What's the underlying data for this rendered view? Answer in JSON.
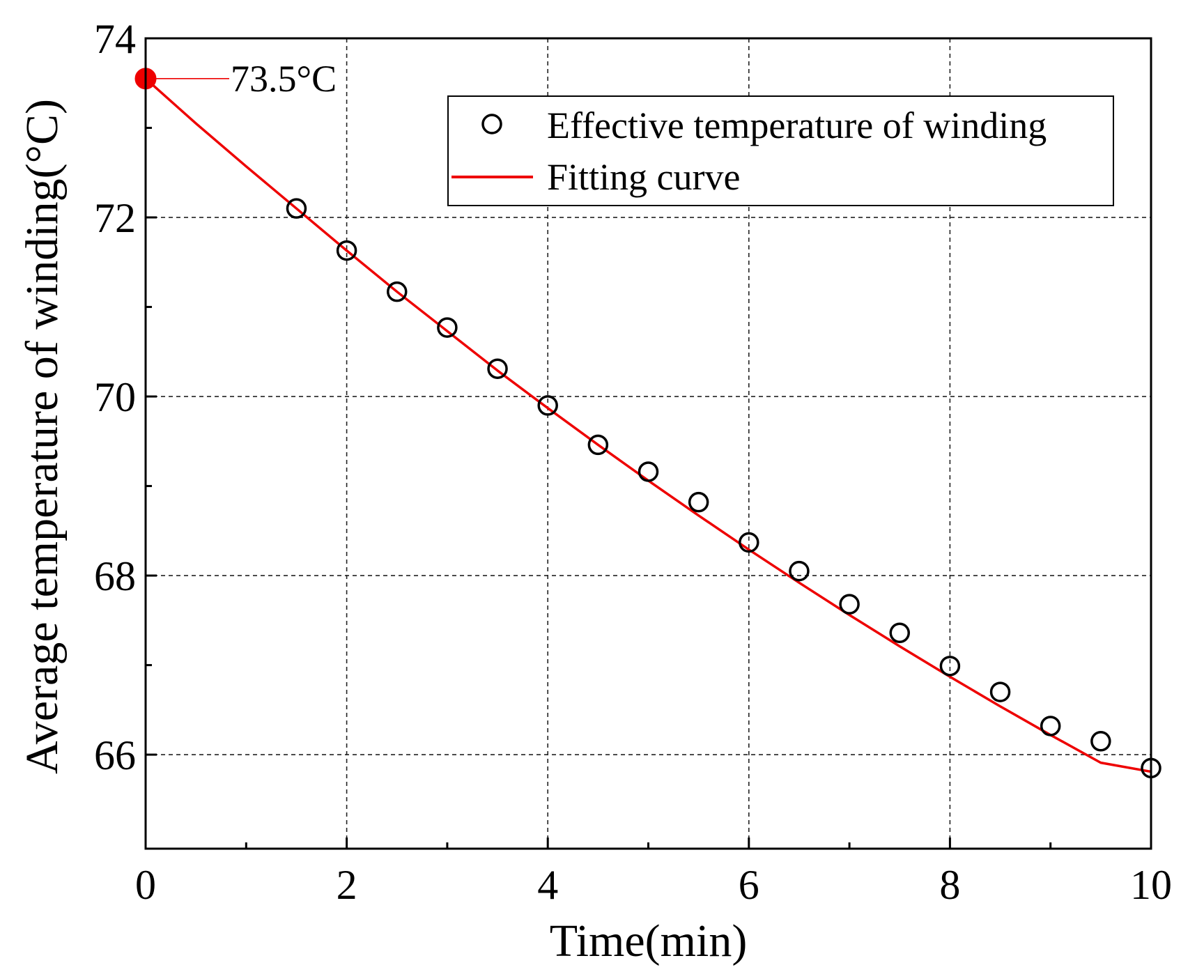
{
  "colors": {
    "fit": "#ee0000",
    "marker": "#000000",
    "grid": "#222222",
    "axis": "#000000"
  },
  "chart_data": {
    "type": "scatter",
    "title": "",
    "xlabel": "Time(min)",
    "ylabel": "Average temperature of winding(°C)",
    "xlim": [
      0,
      10
    ],
    "ylim": [
      64.95,
      74
    ],
    "xticks": [
      0,
      2,
      4,
      6,
      8,
      10
    ],
    "xtick_labels": [
      "0",
      "2",
      "4",
      "6",
      "8",
      "10"
    ],
    "yticks": [
      66,
      68,
      70,
      72,
      74
    ],
    "ytick_labels": [
      "66",
      "68",
      "70",
      "72",
      "74"
    ],
    "grid": true,
    "legend_position": "top-right",
    "series": [
      {
        "name": "Effective temperature of winding",
        "kind": "scatter",
        "marker": "open-circle",
        "x": [
          1.5,
          2.0,
          2.5,
          3.0,
          3.5,
          4.0,
          4.5,
          5.0,
          5.5,
          6.0,
          6.5,
          7.0,
          7.5,
          8.0,
          8.5,
          9.0,
          9.5,
          10.0
        ],
        "y": [
          72.1,
          71.63,
          71.17,
          70.77,
          70.31,
          69.9,
          69.46,
          69.16,
          68.82,
          68.37,
          68.05,
          67.68,
          67.36,
          66.99,
          66.7,
          66.32,
          66.15,
          65.85
        ]
      },
      {
        "name": "Fitting curve",
        "kind": "line",
        "x": [
          0,
          0.5,
          1.0,
          1.5,
          2.0,
          2.5,
          3.0,
          3.5,
          4.0,
          4.5,
          5.0,
          5.5,
          6.0,
          6.5,
          7.0,
          7.5,
          8.0,
          8.5,
          9.0,
          9.5,
          10.0
        ],
        "y": [
          73.55,
          73.05,
          72.57,
          72.1,
          71.63,
          71.17,
          70.73,
          70.29,
          69.87,
          69.46,
          69.06,
          68.67,
          68.29,
          67.92,
          67.56,
          67.21,
          66.87,
          66.54,
          66.22,
          65.91,
          65.81
        ]
      }
    ],
    "annotation": {
      "x": 0,
      "y": 73.55,
      "label": "73.5°C"
    }
  }
}
